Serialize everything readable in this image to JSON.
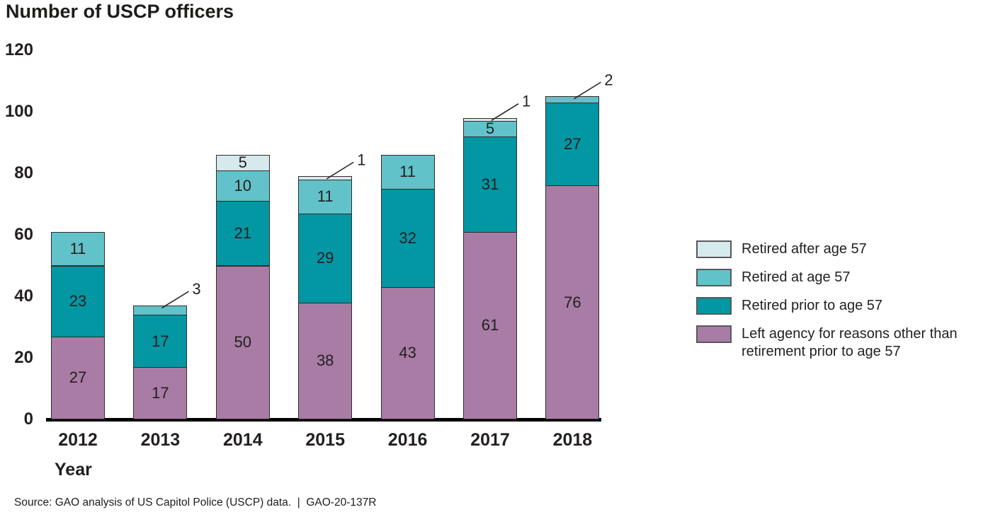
{
  "chart_data": {
    "type": "bar",
    "stacked": true,
    "title": "Number of USCP officers",
    "xlabel": "Year",
    "ylabel": "",
    "categories": [
      "2012",
      "2013",
      "2014",
      "2015",
      "2016",
      "2017",
      "2018"
    ],
    "series": [
      {
        "name": "Left agency for reasons other than retirement prior to age 57",
        "color": "#a87ca5",
        "values": [
          27,
          17,
          50,
          38,
          43,
          61,
          76
        ],
        "callouts": [
          false,
          false,
          false,
          false,
          false,
          false,
          false
        ]
      },
      {
        "name": "Retired prior to age 57",
        "color": "#0396a3",
        "values": [
          23,
          17,
          21,
          29,
          32,
          31,
          27
        ],
        "callouts": [
          false,
          false,
          false,
          false,
          false,
          false,
          false
        ]
      },
      {
        "name": "Retired at age 57",
        "color": "#62c2c9",
        "values": [
          11,
          3,
          10,
          11,
          11,
          5,
          2
        ],
        "callouts": [
          false,
          true,
          false,
          false,
          false,
          false,
          true
        ]
      },
      {
        "name": "Retired after age 57",
        "color": "#d6e9ed",
        "values": [
          0,
          0,
          5,
          1,
          0,
          1,
          0
        ],
        "callouts": [
          false,
          false,
          false,
          true,
          false,
          true,
          false
        ]
      }
    ],
    "legend_order": [
      "Retired after age 57",
      "Retired at age 57",
      "Retired prior to age 57",
      "Left agency for reasons other than retirement prior to age 57"
    ],
    "ylim": [
      0,
      120
    ],
    "yticks": [
      0,
      20,
      40,
      60,
      80,
      100,
      120
    ],
    "grid": false,
    "legend_position": "right",
    "value_labels": true
  },
  "source": {
    "text": "Source: GAO analysis of US Capitol Police (USCP) data.  |  GAO-20-137R"
  },
  "colors": {
    "text": "#231f20",
    "segment_border": "#2e2d2c",
    "legend_swatch_border": "#58595b",
    "axis": "#000000"
  }
}
